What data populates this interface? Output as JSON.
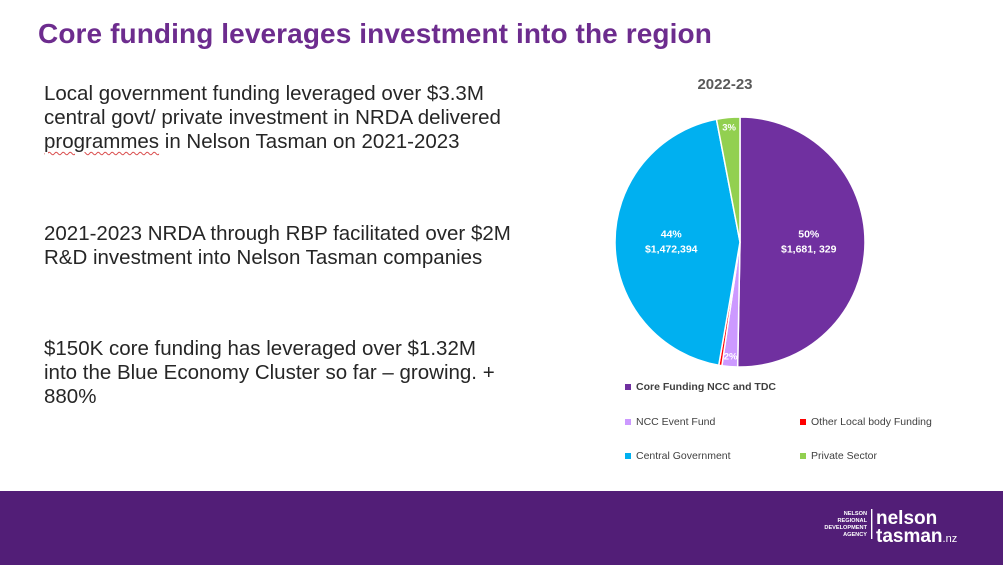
{
  "slide": {
    "title": "Core funding leverages investment into the region",
    "bullets": [
      {
        "before": "Local government funding leveraged over $3.3M central govt/ private investment in NRDA delivered ",
        "marked": "programmes",
        "after": " in Nelson Tasman on 2021-2023"
      },
      {
        "before": "2021-2023 NRDA through RBP facilitated over $2M R&D investment into Nelson Tasman companies",
        "marked": "",
        "after": ""
      },
      {
        "before": "$150K core funding has leveraged over $1.32M into the Blue Economy Cluster so far –  growing. + 880%",
        "marked": "",
        "after": ""
      }
    ]
  },
  "chart_data": {
    "type": "pie",
    "title": "2022-23",
    "slices": [
      {
        "name": "Core Funding NCC and TDC",
        "percent": 50,
        "label_pct": "50%",
        "label_value": "$1,681, 329",
        "color": "#7030a0"
      },
      {
        "name": "NCC Event Fund",
        "percent": 2,
        "label_pct": "2%",
        "label_value": "",
        "color": "#cc99ff"
      },
      {
        "name": "Other Local body Funding",
        "percent": 0.4,
        "label_pct": "",
        "label_value": "",
        "color": "#ff0000"
      },
      {
        "name": "Central Government",
        "percent": 44,
        "label_pct": "44%",
        "label_value": "$1,472,394",
        "color": "#00b0f0"
      },
      {
        "name": "Private Sector",
        "percent": 3,
        "label_pct": "3%",
        "label_value": "",
        "color": "#92d050"
      }
    ],
    "legend_placement": "bottom",
    "legend_order": [
      0,
      1,
      2,
      3,
      4
    ]
  },
  "footer": {
    "background": "#521e77",
    "logo": {
      "lines": [
        "NELSON",
        "REGIONAL",
        "DEVELOPMENT",
        "AGENCY"
      ],
      "word1": "nelson",
      "word2": "tasman",
      "suffix": ".nz"
    }
  }
}
